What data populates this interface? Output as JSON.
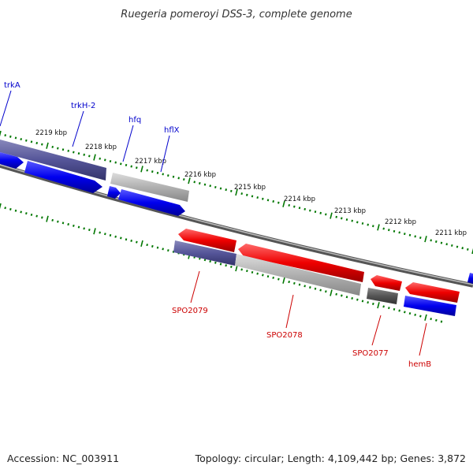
{
  "title": "Ruegeria pomeroyi DSS-3, complete genome",
  "footer": {
    "accession": "Accession: NC_003911",
    "summary": "Topology: circular; Length: 4,109,442 bp; Genes: 3,872"
  },
  "colors": {
    "forward_gene": "#0000ee",
    "reverse_gene": "#ee0000",
    "rna_slate": "#555599",
    "rna_gray": "#aaaaaa",
    "rna_dark": "#555555",
    "tick": "#007700",
    "backbone": "#777777",
    "forward_label": "#0000cc",
    "reverse_label": "#cc0000"
  },
  "scale_labels": [
    "2219 kbp",
    "2218 kbp",
    "2217 kbp",
    "2216 kbp",
    "2215 kbp",
    "2214 kbp",
    "2213 kbp",
    "2212 kbp",
    "2211 kbp"
  ],
  "forward_labels": [
    "trkA",
    "trkH-2",
    "hfq",
    "hflX"
  ],
  "reverse_labels": [
    "SPO2079",
    "SPO2078",
    "SPO2077",
    "hemB"
  ]
}
